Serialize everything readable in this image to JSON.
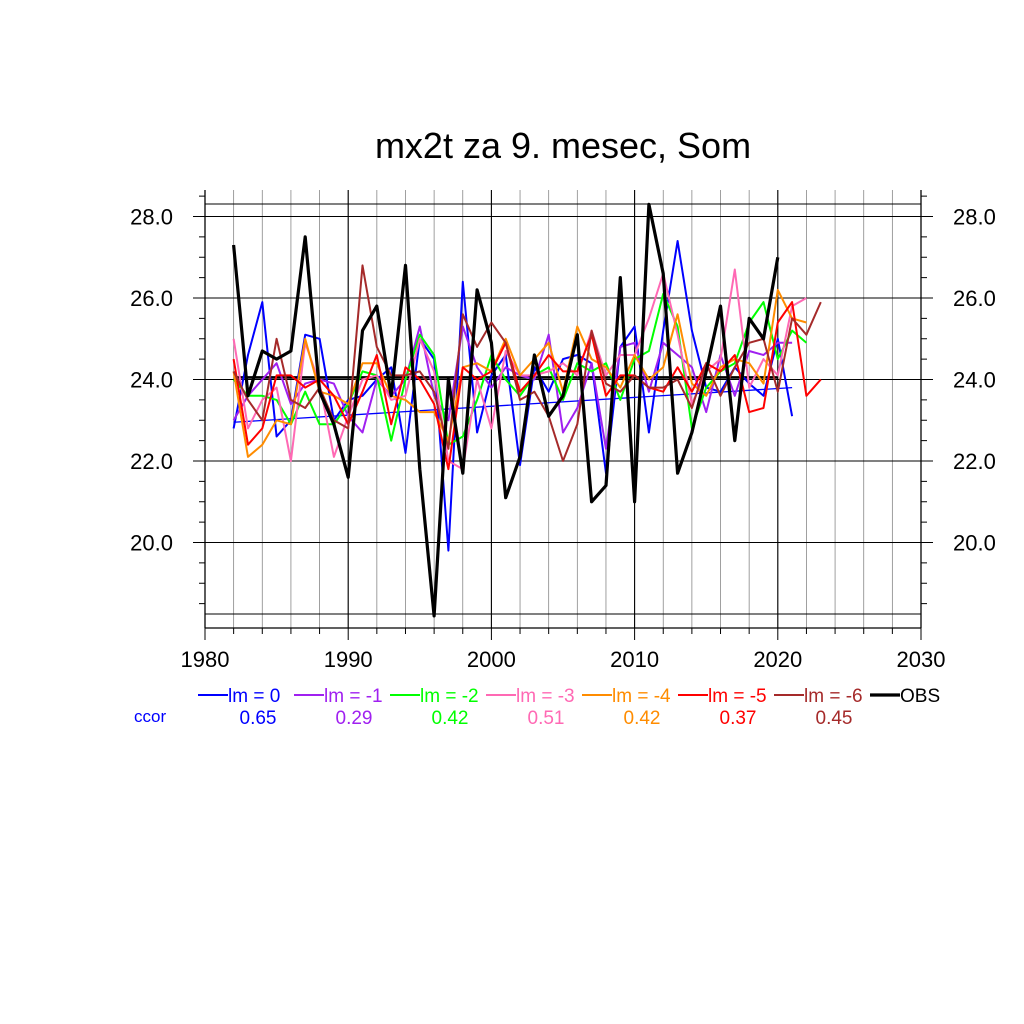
{
  "chart_data": {
    "type": "line",
    "title": "mx2t za 9. mesec, Som",
    "xlabel": "",
    "ylabel": "",
    "xlim": [
      1980,
      2030
    ],
    "ylim": [
      18.2,
      28.6
    ],
    "x_ticks": [
      "1980",
      "1990",
      "2000",
      "2010",
      "2020",
      "2030"
    ],
    "y_ticks": [
      "20.0",
      "22.0",
      "24.0",
      "26.0",
      "28.0"
    ],
    "grid": true,
    "legend_position": "bottom",
    "ccor_label": "ccor",
    "series": [
      {
        "name": "lm = 0",
        "color": "#0000ff",
        "ccor": "0.65",
        "x_start": 1982,
        "values": [
          22.8,
          24.6,
          25.9,
          22.6,
          23.0,
          25.1,
          25.0,
          23.0,
          23.5,
          23.6,
          24.0,
          24.3,
          22.2,
          25.0,
          24.5,
          19.8,
          26.4,
          22.7,
          24.1,
          24.6,
          21.9,
          24.3,
          23.7,
          24.5,
          24.6,
          24.4,
          21.7,
          24.8,
          25.3,
          22.7,
          25.2,
          27.4,
          25.2,
          23.8,
          23.7,
          24.3,
          23.9,
          23.6,
          25.0,
          23.1
        ]
      },
      {
        "name": "lm = -1",
        "color": "#a020f0",
        "ccor": "0.29",
        "x_start": 1982,
        "values": [
          23.0,
          23.6,
          24.0,
          24.4,
          23.4,
          23.9,
          24.0,
          23.9,
          23.1,
          22.7,
          24.0,
          23.6,
          24.0,
          25.3,
          23.6,
          23.0,
          25.3,
          24.3,
          23.8,
          24.3,
          24.1,
          24.0,
          25.1,
          22.7,
          23.3,
          24.4,
          22.3,
          24.8,
          24.9,
          23.7,
          24.9,
          24.6,
          24.3,
          23.2,
          24.6,
          23.6,
          24.7,
          24.6,
          24.9,
          24.9
        ]
      },
      {
        "name": "lm = -2",
        "color": "#00ff00",
        "ccor": "0.42",
        "x_start": 1982,
        "values": [
          24.0,
          23.6,
          23.6,
          23.5,
          22.9,
          23.7,
          22.9,
          22.9,
          23.4,
          24.2,
          24.1,
          22.5,
          24.0,
          25.1,
          24.6,
          22.4,
          22.6,
          23.5,
          24.6,
          24.0,
          23.6,
          24.1,
          24.3,
          23.5,
          24.4,
          24.2,
          24.4,
          23.5,
          24.5,
          24.7,
          26.1,
          25.3,
          22.8,
          23.8,
          24.2,
          24.4,
          25.4,
          25.9,
          24.5,
          25.2,
          24.9
        ]
      },
      {
        "name": "lm = -3",
        "color": "#ff69b4",
        "ccor": "0.51",
        "x_start": 1982,
        "values": [
          25.0,
          22.8,
          23.5,
          23.8,
          22.0,
          24.9,
          23.9,
          22.1,
          23.1,
          24.0,
          24.1,
          23.5,
          23.6,
          25.0,
          24.2,
          22.0,
          21.8,
          24.0,
          22.8,
          24.7,
          24.1,
          24.1,
          24.2,
          24.4,
          24.1,
          25.2,
          24.1,
          24.6,
          24.6,
          25.5,
          26.6,
          25.1,
          23.4,
          24.2,
          24.5,
          26.7,
          23.8,
          24.5,
          24.1,
          25.8,
          26.0
        ]
      },
      {
        "name": "lm = -4",
        "color": "#ff8c00",
        "ccor": "0.42",
        "x_start": 1982,
        "values": [
          24.2,
          22.1,
          22.4,
          23.0,
          22.9,
          25.0,
          23.7,
          23.6,
          23.4,
          24.4,
          24.4,
          23.6,
          23.5,
          23.2,
          23.2,
          22.5,
          24.3,
          24.4,
          24.2,
          25.0,
          24.1,
          24.5,
          24.9,
          23.7,
          25.3,
          24.5,
          24.3,
          23.8,
          24.6,
          24.0,
          24.3,
          25.6,
          23.9,
          23.6,
          24.3,
          24.5,
          24.4,
          23.9,
          26.2,
          25.5,
          25.4
        ]
      },
      {
        "name": "lm = -5",
        "color": "#ff0000",
        "ccor": "0.37",
        "x_start": 1982,
        "values": [
          24.5,
          22.4,
          22.8,
          24.1,
          24.1,
          23.8,
          24.0,
          23.6,
          22.9,
          23.7,
          24.6,
          22.9,
          24.3,
          24.0,
          23.4,
          21.8,
          24.3,
          24.0,
          24.2,
          24.9,
          23.7,
          24.1,
          24.6,
          24.2,
          24.2,
          25.1,
          23.6,
          24.1,
          24.1,
          23.8,
          23.7,
          24.3,
          23.7,
          24.4,
          24.2,
          24.6,
          23.2,
          23.3,
          25.4,
          25.9,
          23.6,
          24.0
        ]
      },
      {
        "name": "lm = -6",
        "color": "#a52a2a",
        "ccor": "0.45",
        "x_start": 1982,
        "values": [
          24.2,
          23.5,
          23.0,
          25.0,
          23.5,
          23.3,
          23.8,
          23.0,
          22.8,
          26.8,
          24.8,
          24.1,
          24.1,
          24.2,
          23.7,
          22.3,
          25.6,
          24.8,
          25.4,
          24.9,
          23.5,
          23.7,
          23.1,
          22.0,
          22.9,
          25.2,
          23.9,
          23.7,
          24.1,
          23.8,
          23.8,
          24.0,
          23.3,
          24.4,
          23.6,
          24.3,
          24.9,
          25.0,
          23.7,
          25.5,
          25.1,
          25.9
        ]
      },
      {
        "name": "OBS",
        "color": "#000000",
        "ccor": "",
        "x_start": 1982,
        "values": [
          27.3,
          23.6,
          24.7,
          24.5,
          24.7,
          27.5,
          23.7,
          22.9,
          21.6,
          25.2,
          25.8,
          23.6,
          26.8,
          21.8,
          18.2,
          24.0,
          21.7,
          26.2,
          24.9,
          21.1,
          22.1,
          24.6,
          23.1,
          23.6,
          25.1,
          21.0,
          21.4,
          26.5,
          21.0,
          28.3,
          26.6,
          21.7,
          22.7,
          24.2,
          25.8,
          22.5,
          25.5,
          25.0,
          27.0
        ]
      }
    ],
    "trend_line": {
      "color": "#0000ff",
      "x": [
        1982,
        2021
      ],
      "y": [
        22.95,
        23.8
      ]
    },
    "obs_mean_line": {
      "color": "#000000",
      "x": [
        1982,
        2020
      ],
      "y": [
        24.05,
        24.05
      ]
    }
  }
}
